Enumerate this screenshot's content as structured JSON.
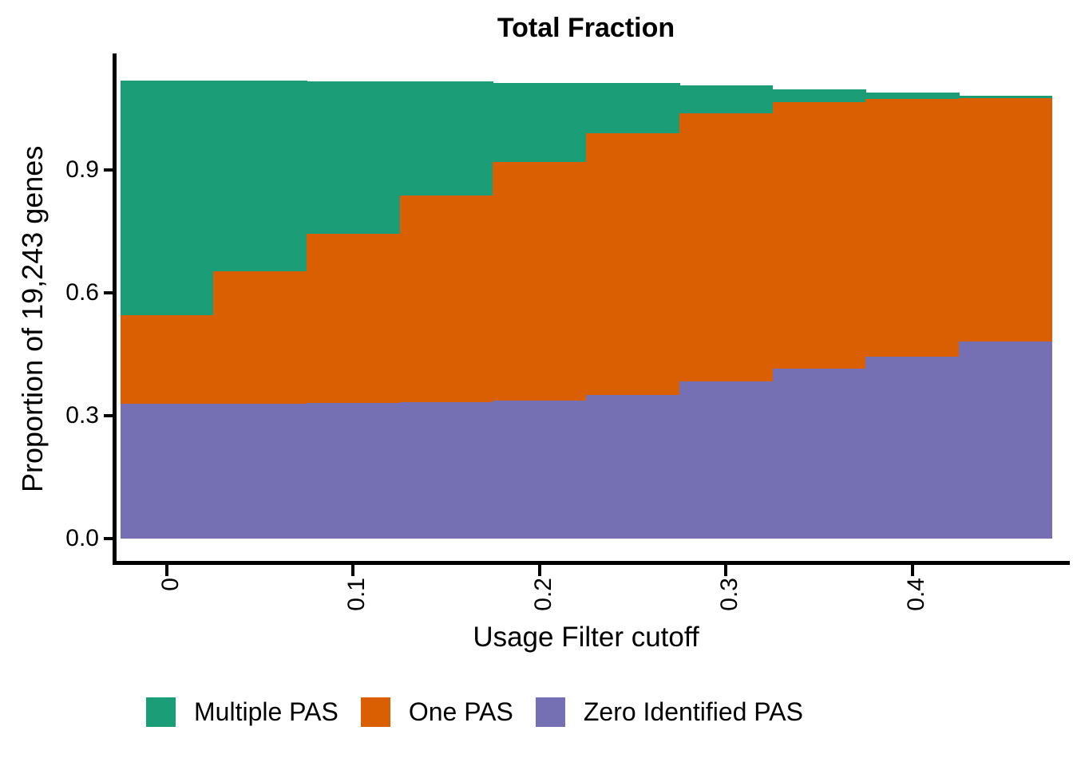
{
  "title": "Total Fraction",
  "axes": {
    "x": {
      "label": "Usage Filter cutoff",
      "tick_labels": [
        "0",
        "0.1",
        "0.2",
        "0.3",
        "0.4"
      ],
      "tick_values": [
        0,
        0.1,
        0.2,
        0.3,
        0.4
      ]
    },
    "y": {
      "label": "Proportion of 19,243 genes",
      "tick_labels": [
        "0.0",
        "0.3",
        "0.6",
        "0.9"
      ],
      "tick_values": [
        0,
        0.3,
        0.6,
        0.9
      ]
    }
  },
  "legend": {
    "items": [
      {
        "label": "Multiple PAS",
        "color": "#1B9E77"
      },
      {
        "label": "One PAS",
        "color": "#D95F02"
      },
      {
        "label": "Zero Identified PAS",
        "color": "#7570B3"
      }
    ]
  },
  "chart_data": {
    "type": "bar",
    "subtype": "stacked",
    "title": "Total Fraction",
    "xlabel": "Usage Filter cutoff",
    "ylabel": "Proportion of 19,243 genes",
    "x": [
      0,
      0.05,
      0.1,
      0.15,
      0.2,
      0.25,
      0.3,
      0.35,
      0.4,
      0.45
    ],
    "bar_width": 0.05,
    "xlim": [
      -0.025,
      0.512
    ],
    "ylim": [
      0,
      1.184
    ],
    "grid": false,
    "legend_position": "bottom",
    "series": [
      {
        "name": "Zero Identified PAS",
        "color": "#7570B3",
        "values": [
          0.33,
          0.33,
          0.331,
          0.334,
          0.337,
          0.35,
          0.384,
          0.414,
          0.444,
          0.482
        ]
      },
      {
        "name": "One PAS",
        "color": "#D95F02",
        "values": [
          0.215,
          0.323,
          0.413,
          0.504,
          0.583,
          0.639,
          0.655,
          0.652,
          0.629,
          0.593
        ]
      },
      {
        "name": "Multiple PAS",
        "color": "#1B9E77",
        "values": [
          0.573,
          0.465,
          0.373,
          0.278,
          0.193,
          0.123,
          0.067,
          0.03,
          0.015,
          0.007
        ]
      }
    ],
    "stacked_totals": [
      1.118,
      1.118,
      1.117,
      1.116,
      1.113,
      1.112,
      1.106,
      1.096,
      1.088,
      1.082
    ]
  }
}
